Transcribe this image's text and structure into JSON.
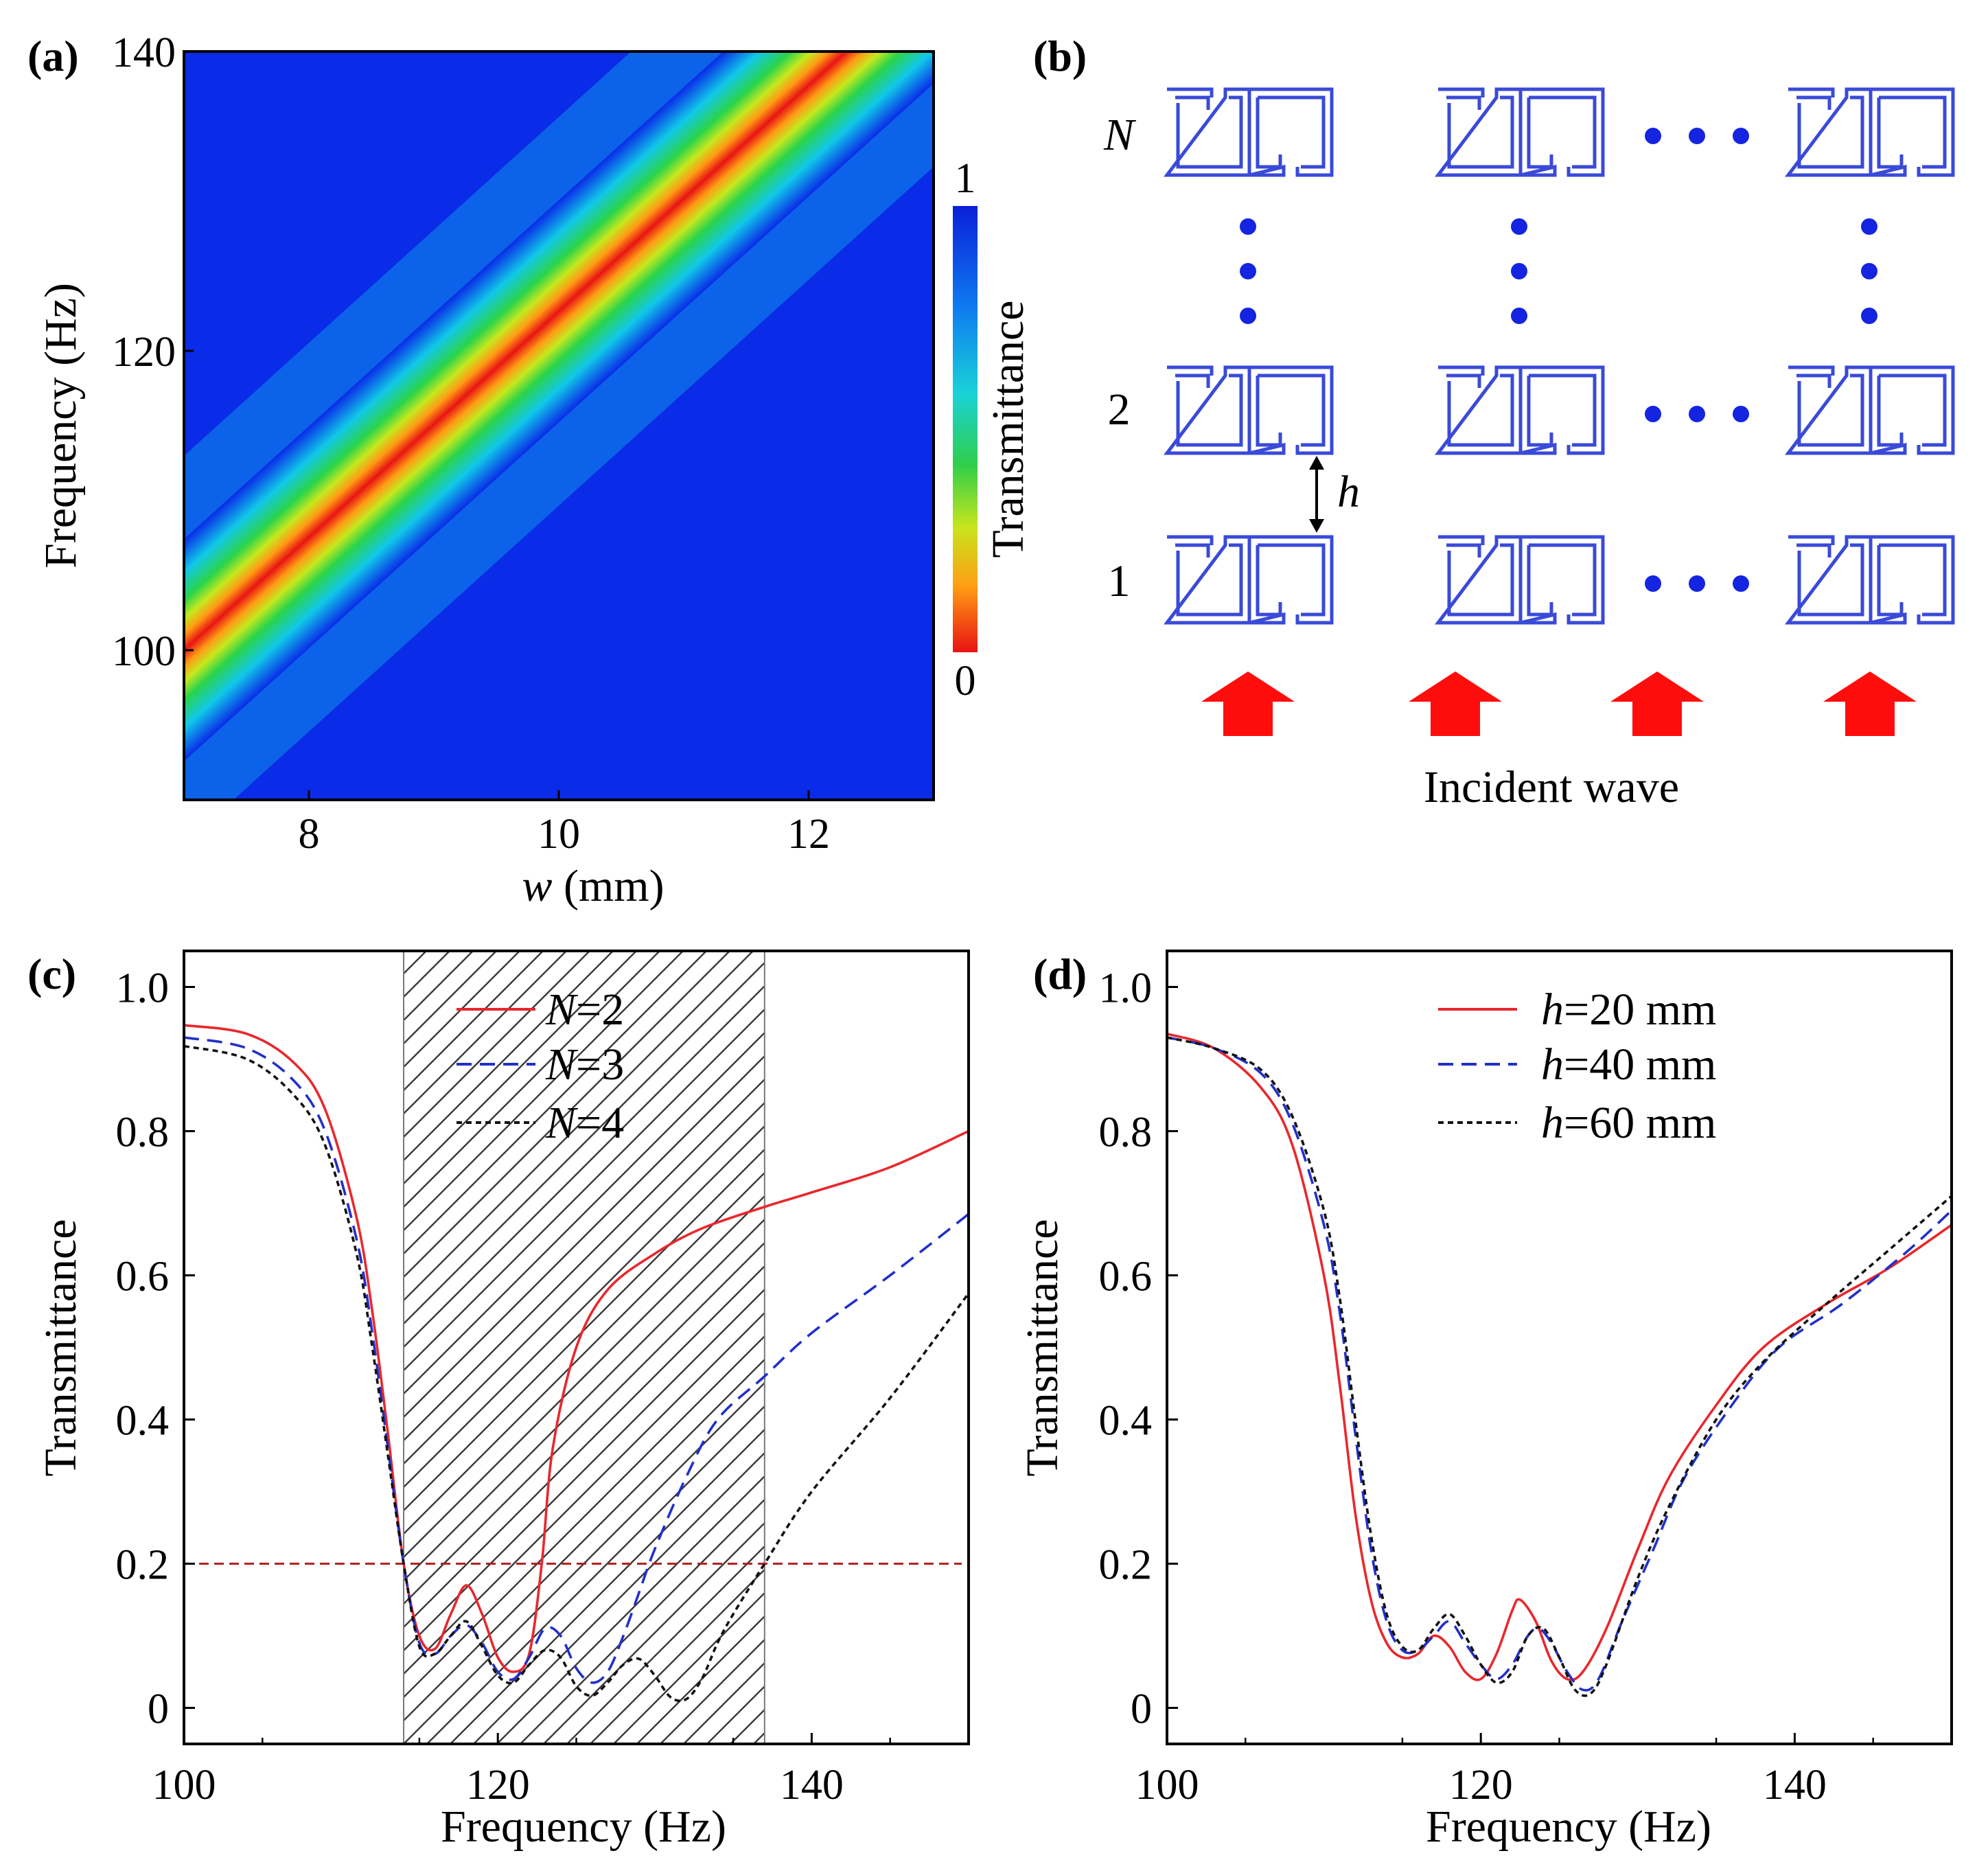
{
  "chart_data": [
    {
      "panel": "(a)",
      "type": "heatmap",
      "title": "",
      "xlabel_var": "w",
      "xlabel_unit": "(mm)",
      "ylabel": "Frequency (Hz)",
      "xlim": [
        7,
        13
      ],
      "ylim": [
        90,
        140
      ],
      "xticks": [
        8,
        10,
        12
      ],
      "yticks": [
        100,
        120,
        140
      ],
      "colorbar": {
        "label": "Transmittance",
        "min_label": "0",
        "max_label": "1",
        "range": [
          0,
          1
        ]
      },
      "band": {
        "description": "Low-transmittance resonance band",
        "center_line": [
          {
            "w": 7.0,
            "f": 100.0
          },
          {
            "w": 12.3,
            "f": 140.0
          }
        ],
        "min_transmittance": 0.0,
        "background_transmittance": 1.0
      }
    },
    {
      "panel": "(b)",
      "type": "diagram",
      "row_labels": [
        "N",
        "2",
        "1"
      ],
      "spacing_label": "h",
      "caption": "Incident wave",
      "ellipsis": "• • •"
    },
    {
      "panel": "(c)",
      "type": "line",
      "xlabel": "Frequency (Hz)",
      "ylabel": "Transmittance",
      "xlim": [
        100,
        150
      ],
      "ylim": [
        -0.05,
        1.05
      ],
      "xticks": [
        100,
        120,
        140
      ],
      "yticks": [
        "0",
        "0.2",
        "0.4",
        "0.6",
        "0.8",
        "1.0"
      ],
      "ytick_values": [
        0,
        0.2,
        0.4,
        0.6,
        0.8,
        1.0
      ],
      "shaded_region": {
        "x": [
          114,
          137
        ],
        "pattern": "hatched"
      },
      "reference_line": {
        "y": 0.2,
        "color": "#b22222",
        "style": "dashed"
      },
      "series": [
        {
          "name_var": "N",
          "name_rest": "=2",
          "color": "#e8282d",
          "style": "solid",
          "points": [
            [
              100,
              0.947
            ],
            [
              104,
              0.935
            ],
            [
              107,
              0.895
            ],
            [
              109,
              0.83
            ],
            [
              111,
              0.68
            ],
            [
              112,
              0.55
            ],
            [
              113,
              0.38
            ],
            [
              114,
              0.2
            ],
            [
              115,
              0.1
            ],
            [
              116,
              0.082
            ],
            [
              117,
              0.13
            ],
            [
              118,
              0.17
            ],
            [
              119,
              0.13
            ],
            [
              120,
              0.07
            ],
            [
              121,
              0.05
            ],
            [
              122,
              0.075
            ],
            [
              122.8,
              0.2
            ],
            [
              123.5,
              0.36
            ],
            [
              125,
              0.5
            ],
            [
              127,
              0.58
            ],
            [
              130,
              0.63
            ],
            [
              133,
              0.665
            ],
            [
              137,
              0.695
            ],
            [
              140,
              0.715
            ],
            [
              145,
              0.75
            ],
            [
              150,
              0.8
            ]
          ]
        },
        {
          "name_var": "N",
          "name_rest": "=3",
          "color": "#2230c8",
          "style": "dashed",
          "points": [
            [
              100,
              0.93
            ],
            [
              104,
              0.915
            ],
            [
              107,
              0.87
            ],
            [
              109,
              0.8
            ],
            [
              111,
              0.65
            ],
            [
              112,
              0.52
            ],
            [
              113,
              0.36
            ],
            [
              114,
              0.2
            ],
            [
              115,
              0.09
            ],
            [
              116,
              0.075
            ],
            [
              117,
              0.1
            ],
            [
              118,
              0.115
            ],
            [
              119,
              0.09
            ],
            [
              120,
              0.05
            ],
            [
              121,
              0.04
            ],
            [
              122,
              0.07
            ],
            [
              123,
              0.11
            ],
            [
              124,
              0.1
            ],
            [
              125,
              0.055
            ],
            [
              126,
              0.035
            ],
            [
              127,
              0.05
            ],
            [
              128,
              0.1
            ],
            [
              129,
              0.16
            ],
            [
              130,
              0.22
            ],
            [
              132,
              0.32
            ],
            [
              134,
              0.4
            ],
            [
              137,
              0.46
            ],
            [
              140,
              0.52
            ],
            [
              145,
              0.6
            ],
            [
              150,
              0.685
            ]
          ]
        },
        {
          "name_var": "N",
          "name_rest": "=4",
          "color": "#111111",
          "style": "dotted",
          "points": [
            [
              100,
              0.918
            ],
            [
              104,
              0.9
            ],
            [
              107,
              0.85
            ],
            [
              109,
              0.78
            ],
            [
              111,
              0.63
            ],
            [
              112,
              0.5
            ],
            [
              113,
              0.35
            ],
            [
              114,
              0.2
            ],
            [
              115,
              0.085
            ],
            [
              116,
              0.075
            ],
            [
              117,
              0.1
            ],
            [
              118,
              0.12
            ],
            [
              119,
              0.085
            ],
            [
              120,
              0.045
            ],
            [
              121,
              0.035
            ],
            [
              122,
              0.06
            ],
            [
              123,
              0.08
            ],
            [
              124,
              0.07
            ],
            [
              125,
              0.03
            ],
            [
              126,
              0.017
            ],
            [
              127,
              0.035
            ],
            [
              128,
              0.06
            ],
            [
              129,
              0.068
            ],
            [
              130,
              0.045
            ],
            [
              131,
              0.015
            ],
            [
              132,
              0.012
            ],
            [
              133,
              0.04
            ],
            [
              134,
              0.09
            ],
            [
              135,
              0.13
            ],
            [
              137,
              0.2
            ],
            [
              140,
              0.3
            ],
            [
              145,
              0.43
            ],
            [
              150,
              0.575
            ]
          ]
        }
      ]
    },
    {
      "panel": "(d)",
      "type": "line",
      "xlabel": "Frequency (Hz)",
      "ylabel": "Transmittance",
      "xlim": [
        100,
        150
      ],
      "ylim": [
        -0.05,
        1.05
      ],
      "xticks": [
        100,
        120,
        140
      ],
      "yticks": [
        "0",
        "0.2",
        "0.4",
        "0.6",
        "0.8",
        "1.0"
      ],
      "ytick_values": [
        0,
        0.2,
        0.4,
        0.6,
        0.8,
        1.0
      ],
      "series": [
        {
          "name_var": "h",
          "name_rest": "=20 mm",
          "color": "#e8282d",
          "style": "solid",
          "points": [
            [
              100,
              0.935
            ],
            [
              103,
              0.915
            ],
            [
              106,
              0.86
            ],
            [
              108,
              0.78
            ],
            [
              110,
              0.6
            ],
            [
              111,
              0.45
            ],
            [
              112,
              0.27
            ],
            [
              113,
              0.15
            ],
            [
              114,
              0.09
            ],
            [
              115,
              0.07
            ],
            [
              116,
              0.075
            ],
            [
              117,
              0.1
            ],
            [
              118,
              0.085
            ],
            [
              119,
              0.05
            ],
            [
              120,
              0.04
            ],
            [
              121,
              0.075
            ],
            [
              122,
              0.135
            ],
            [
              122.5,
              0.15
            ],
            [
              123.5,
              0.12
            ],
            [
              124.5,
              0.065
            ],
            [
              125.5,
              0.04
            ],
            [
              126.5,
              0.05
            ],
            [
              128,
              0.11
            ],
            [
              130,
              0.22
            ],
            [
              132,
              0.32
            ],
            [
              135,
              0.42
            ],
            [
              138,
              0.5
            ],
            [
              142,
              0.56
            ],
            [
              146,
              0.61
            ],
            [
              150,
              0.67
            ]
          ]
        },
        {
          "name_var": "h",
          "name_rest": "=40 mm",
          "color": "#2230c8",
          "style": "dashed",
          "points": [
            [
              100,
              0.93
            ],
            [
              103,
              0.915
            ],
            [
              106,
              0.88
            ],
            [
              108,
              0.81
            ],
            [
              110,
              0.67
            ],
            [
              111,
              0.55
            ],
            [
              112,
              0.38
            ],
            [
              113,
              0.22
            ],
            [
              114,
              0.12
            ],
            [
              115,
              0.08
            ],
            [
              116,
              0.08
            ],
            [
              117,
              0.1
            ],
            [
              118,
              0.12
            ],
            [
              119,
              0.09
            ],
            [
              120,
              0.06
            ],
            [
              121,
              0.04
            ],
            [
              122,
              0.06
            ],
            [
              123,
              0.1
            ],
            [
              123.7,
              0.11
            ],
            [
              124.5,
              0.09
            ],
            [
              125.5,
              0.05
            ],
            [
              126.5,
              0.025
            ],
            [
              127.5,
              0.04
            ],
            [
              129,
              0.12
            ],
            [
              131,
              0.22
            ],
            [
              133,
              0.32
            ],
            [
              136,
              0.42
            ],
            [
              139,
              0.5
            ],
            [
              143,
              0.56
            ],
            [
              147,
              0.63
            ],
            [
              150,
              0.69
            ]
          ]
        },
        {
          "name_var": "h",
          "name_rest": "=60 mm",
          "color": "#111111",
          "style": "dotted",
          "points": [
            [
              100,
              0.93
            ],
            [
              103,
              0.915
            ],
            [
              106,
              0.885
            ],
            [
              108,
              0.82
            ],
            [
              110,
              0.69
            ],
            [
              111,
              0.57
            ],
            [
              112,
              0.4
            ],
            [
              113,
              0.24
            ],
            [
              114,
              0.13
            ],
            [
              115,
              0.085
            ],
            [
              116,
              0.08
            ],
            [
              117,
              0.11
            ],
            [
              118,
              0.13
            ],
            [
              119,
              0.1
            ],
            [
              120,
              0.06
            ],
            [
              121,
              0.035
            ],
            [
              122,
              0.05
            ],
            [
              123,
              0.1
            ],
            [
              124,
              0.11
            ],
            [
              125,
              0.07
            ],
            [
              126,
              0.025
            ],
            [
              127,
              0.02
            ],
            [
              128,
              0.06
            ],
            [
              130,
              0.18
            ],
            [
              132,
              0.28
            ],
            [
              135,
              0.4
            ],
            [
              138,
              0.48
            ],
            [
              142,
              0.56
            ],
            [
              146,
              0.635
            ],
            [
              150,
              0.71
            ]
          ]
        }
      ]
    }
  ]
}
